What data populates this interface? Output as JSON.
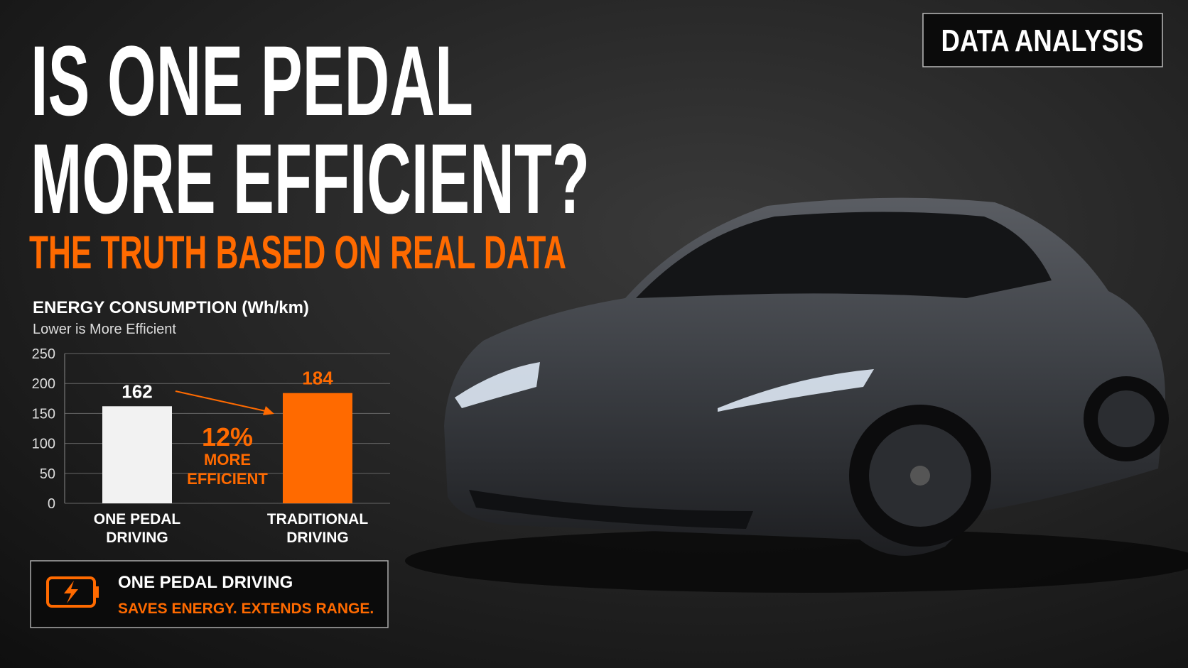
{
  "badge": "DATA ANALYSIS",
  "headline": [
    "IS ONE PEDAL",
    "MORE EFFICIENT?"
  ],
  "subheadline": "THE TRUTH BASED ON REAL DATA",
  "chart_data": {
    "type": "bar",
    "title": "ENERGY CONSUMPTION (Wh/km)",
    "subtitle": "Lower is More Efficient",
    "categories": [
      [
        "ONE PEDAL",
        "DRIVING"
      ],
      [
        "TRADITIONAL",
        "DRIVING"
      ]
    ],
    "values": [
      162,
      184
    ],
    "colors": [
      "#f2f2f2",
      "#ff6a00"
    ],
    "ylim": [
      0,
      250
    ],
    "yticks": [
      0,
      50,
      100,
      150,
      200,
      250
    ],
    "grid": true,
    "annotations": [
      "12%",
      "MORE",
      "EFFICIENT"
    ]
  },
  "callout": {
    "title": "ONE PEDAL DRIVING",
    "text": "SAVES ENERGY. EXTENDS RANGE."
  }
}
